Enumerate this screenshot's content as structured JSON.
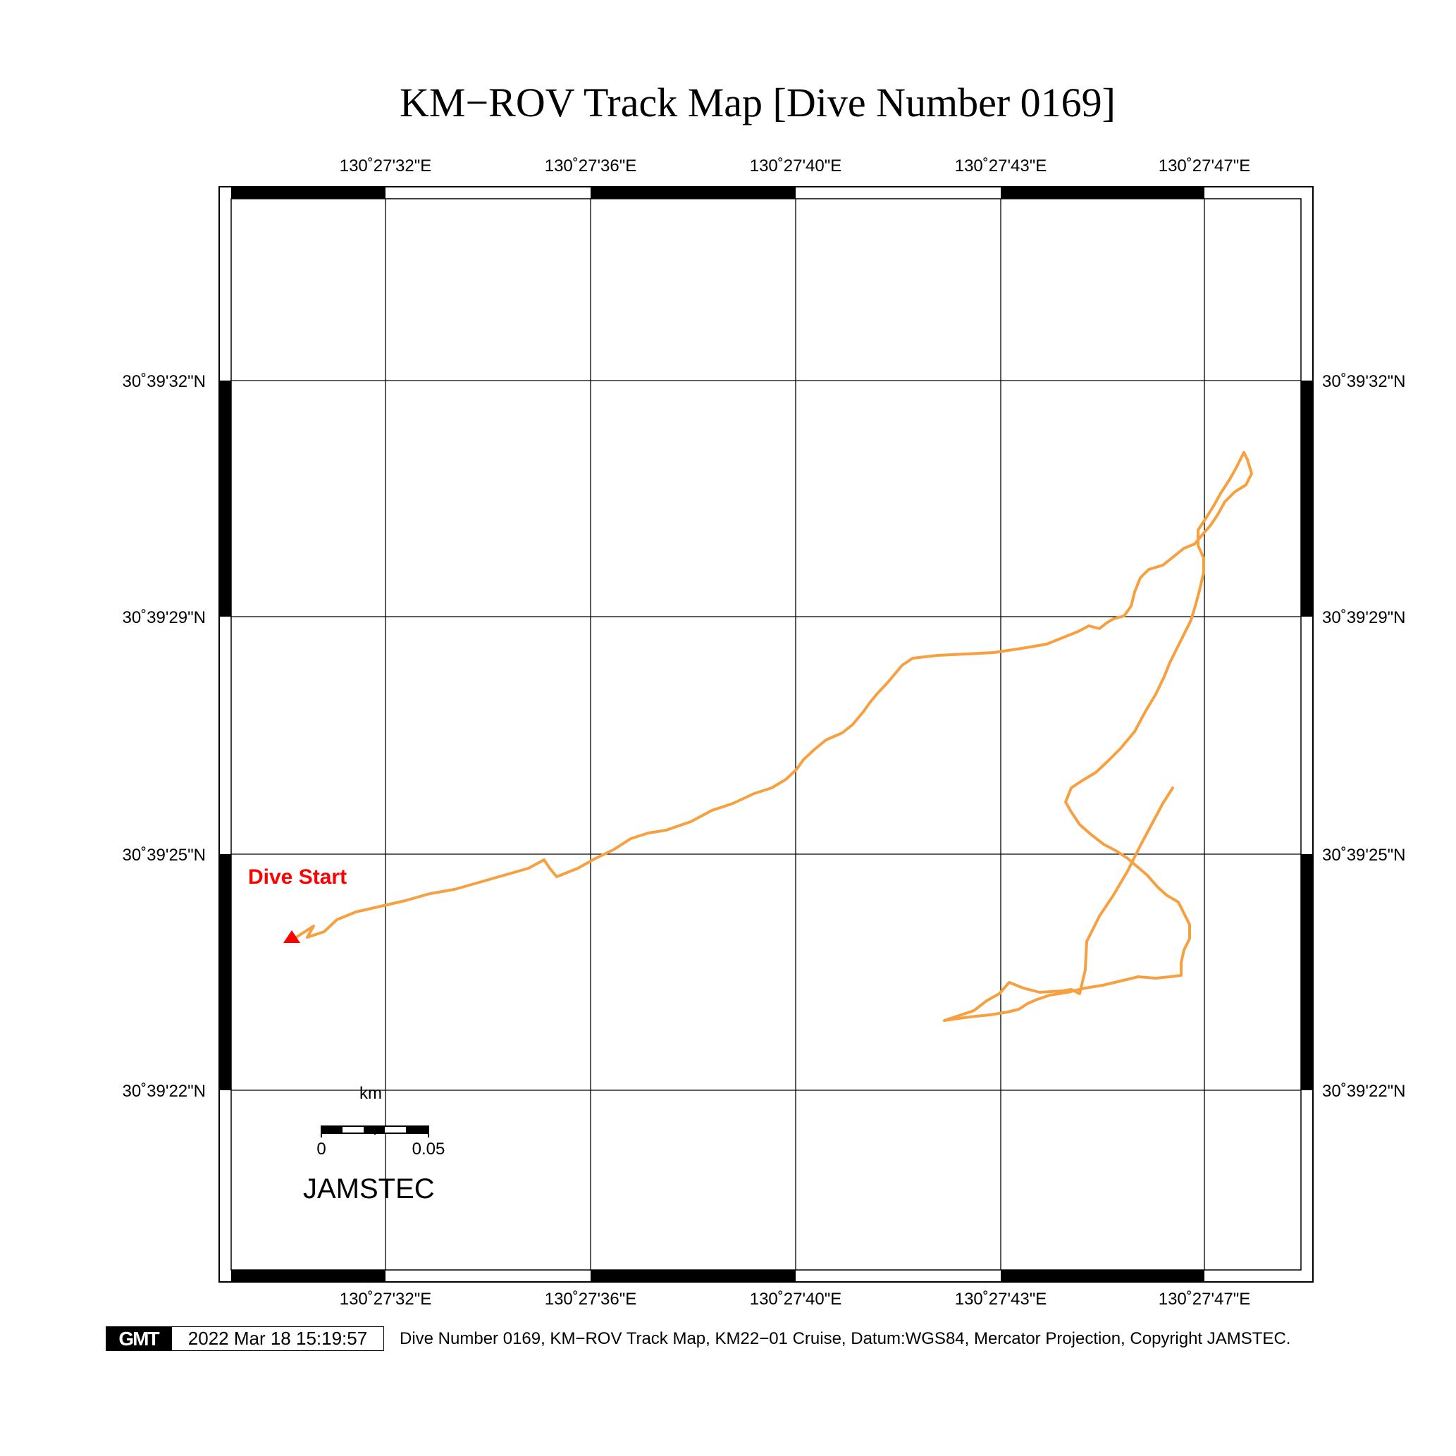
{
  "title": "KM−ROV Track Map [Dive Number 0169]",
  "top_axis_labels": [
    "130˚27'32\"E",
    "130˚27'36\"E",
    "130˚27'40\"E",
    "130˚27'43\"E",
    "130˚27'47\"E"
  ],
  "bottom_axis_labels": [
    "130˚27'32\"E",
    "130˚27'36\"E",
    "130˚27'40\"E",
    "130˚27'43\"E",
    "130˚27'47\"E"
  ],
  "left_axis_labels": [
    "30˚39'32\"N",
    "30˚39'29\"N",
    "30˚39'25\"N",
    "30˚39'22\"N"
  ],
  "right_axis_labels": [
    "30˚39'32\"N",
    "30˚39'29\"N",
    "30˚39'25\"N",
    "30˚39'22\"N"
  ],
  "start_marker_label": "Dive Start",
  "scale_bar": {
    "unit": "km",
    "ticks": [
      "0",
      "0.05"
    ]
  },
  "organization": "JAMSTEC",
  "footer": {
    "logo_text": "GMT",
    "timestamp": "2022 Mar 18 15:19:57",
    "caption": "Dive Number 0169, KM−ROV Track Map, KM22−01 Cruise, Datum:WGS84, Mercator Projection, Copyright JAMSTEC."
  },
  "colors": {
    "track": "#f7a040",
    "start_marker": "#ff0000",
    "frame": "#000000",
    "grid": "#000000"
  }
}
